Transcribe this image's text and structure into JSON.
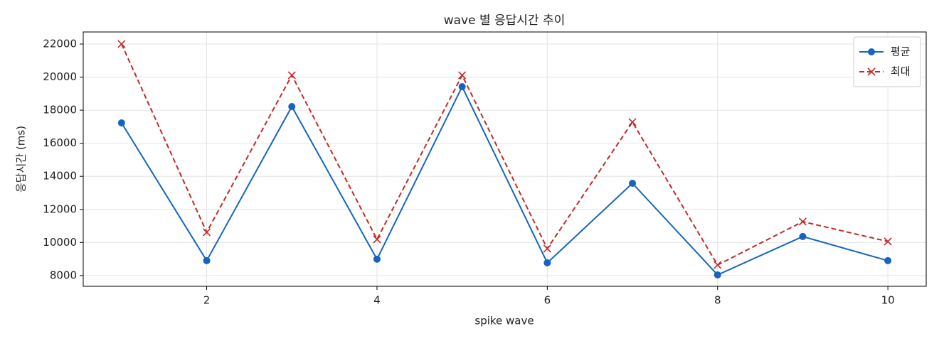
{
  "chart_data": {
    "type": "line",
    "title": "wave 별 응답시간 추이",
    "x_label": "spike wave",
    "y_label": "응답시간 (ms)",
    "x": [
      1,
      2,
      3,
      4,
      5,
      6,
      7,
      8,
      9,
      10
    ],
    "series": [
      {
        "name": "평균",
        "color": "#1565c0",
        "marker": "circle",
        "dash": "solid",
        "values": [
          17230,
          8900,
          18220,
          8990,
          19420,
          8770,
          13580,
          8040,
          10360,
          8900
        ]
      },
      {
        "name": "최대",
        "color": "#c62828",
        "marker": "x",
        "dash": "dashed",
        "values": [
          22000,
          10620,
          20110,
          10190,
          20110,
          9630,
          17280,
          8640,
          11260,
          10060
        ]
      }
    ],
    "xlim": [
      0.55,
      10.45
    ],
    "xticks": [
      2,
      4,
      6,
      8,
      10
    ],
    "ylim": [
      7350,
      22730
    ],
    "yticks": [
      8000,
      10000,
      12000,
      14000,
      16000,
      18000,
      20000,
      22000
    ],
    "grid": true,
    "legend": "upper right"
  }
}
